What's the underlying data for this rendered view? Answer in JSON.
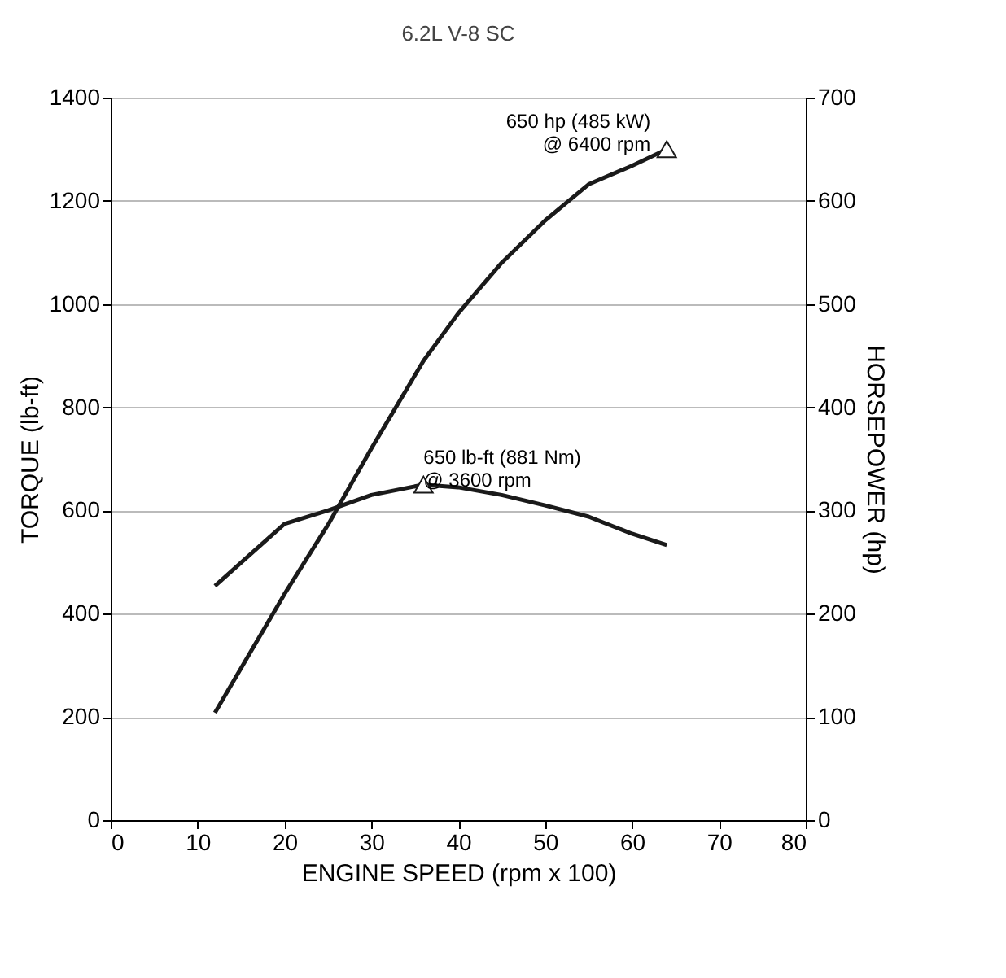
{
  "chart_data": {
    "type": "line",
    "title": "6.2L V-8 SC",
    "xlabel": "ENGINE SPEED (rpm x 100)",
    "ylabel": "TORQUE (lb-ft)",
    "y2label": "HORSEPOWER (hp)",
    "xlim": [
      0,
      80
    ],
    "xticks": [
      0,
      10,
      20,
      30,
      40,
      50,
      60,
      70,
      80
    ],
    "ylim": [
      0,
      1400
    ],
    "yticks": [
      0,
      200,
      400,
      600,
      800,
      1000,
      1200,
      1400
    ],
    "y2lim": [
      0,
      700
    ],
    "y2ticks": [
      0,
      100,
      200,
      300,
      400,
      500,
      600,
      700
    ],
    "grid": "y",
    "line_style": "solid",
    "series": [
      {
        "color": "#1a1a1a",
        "x": [
          12,
          20,
          25,
          30,
          36,
          40,
          45,
          50,
          55,
          60,
          64
        ],
        "values": [
          454,
          574,
          600,
          630,
          650,
          645,
          630,
          610,
          588,
          555,
          533
        ]
      },
      {
        "axis": "y2",
        "color": "#1a1a1a",
        "x": [
          12,
          20,
          25,
          30,
          36,
          40,
          45,
          50,
          55,
          60,
          64
        ],
        "values": [
          104,
          219,
          286,
          360,
          445,
          491,
          540,
          581,
          616,
          634,
          650
        ]
      },
      {
        "type": "scatter",
        "marker": "triangle",
        "color": "#1a1a1a",
        "x": [
          36
        ],
        "values": [
          650
        ]
      },
      {
        "type": "scatter",
        "marker": "triangle",
        "axis": "y2",
        "color": "#1a1a1a",
        "x": [
          64
        ],
        "values": [
          650
        ]
      }
    ],
    "annotations": [
      {
        "text": "650 lb-ft (881 Nm)\n@ 3600 rpm",
        "x": 36,
        "y": 650
      },
      {
        "text": "650 hp (485 kW)\n@ 6400 rpm",
        "x": 64,
        "y": 1300
      }
    ]
  }
}
